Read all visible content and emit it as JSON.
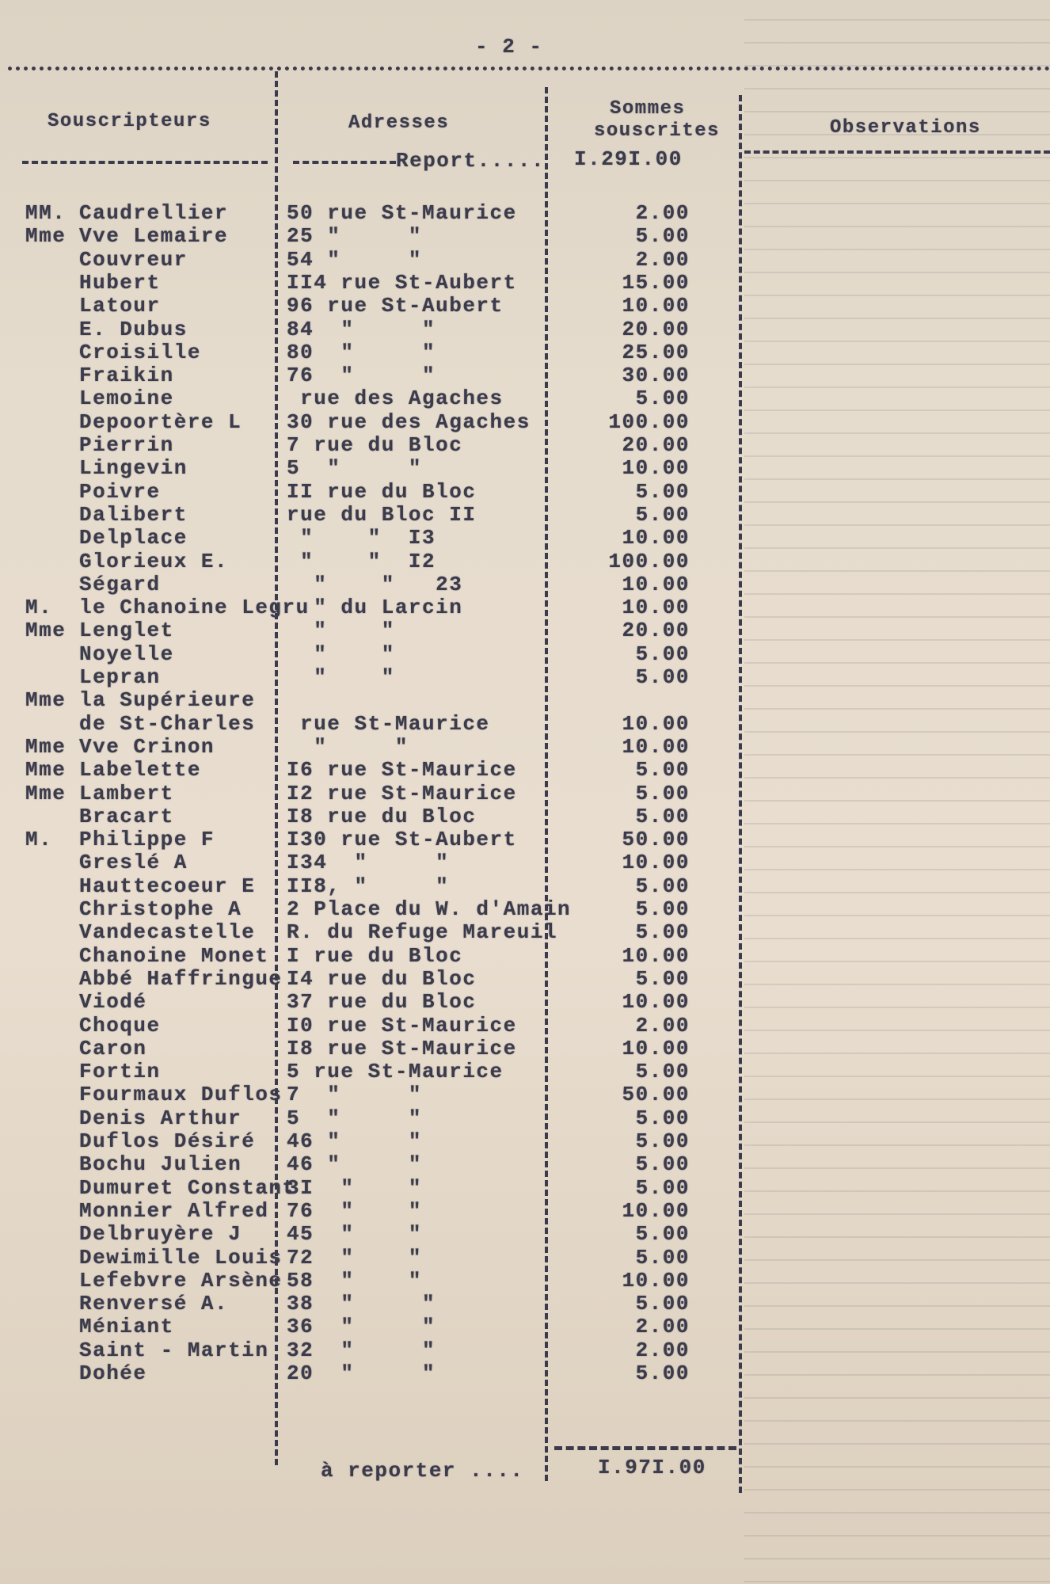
{
  "page_number": "- 2 -",
  "headers": {
    "subscribers": "Souscripteurs",
    "addresses": "Adresses",
    "amounts_line1": "Sommes",
    "amounts_line2": "souscrites",
    "observations": "Observations"
  },
  "carry_in": {
    "label": "Report.....",
    "amount": "I.29I.00"
  },
  "rows": [
    {
      "prefix": "MM.",
      "name": "Caudrellier",
      "address": "50 rue St-Maurice",
      "amount": "2.00"
    },
    {
      "prefix": "Mme",
      "name": "Vve Lemaire",
      "address": "25 \"     \"",
      "amount": "5.00"
    },
    {
      "prefix": "",
      "name": "Couvreur",
      "address": "54 \"     \"",
      "amount": "2.00"
    },
    {
      "prefix": "",
      "name": "Hubert",
      "address": "II4 rue St-Aubert",
      "amount": "15.00"
    },
    {
      "prefix": "",
      "name": "Latour",
      "address": "96 rue St-Aubert",
      "amount": "10.00"
    },
    {
      "prefix": "",
      "name": "E. Dubus",
      "address": "84  \"     \"",
      "amount": "20.00"
    },
    {
      "prefix": "",
      "name": "Croisille",
      "address": "80  \"     \"",
      "amount": "25.00"
    },
    {
      "prefix": "",
      "name": "Fraikin",
      "address": "76  \"     \"",
      "amount": "30.00"
    },
    {
      "prefix": "",
      "name": "Lemoine",
      "address": " rue des Agaches",
      "amount": "5.00"
    },
    {
      "prefix": "",
      "name": "Depoortère L",
      "address": "30 rue des Agaches",
      "amount": "100.00"
    },
    {
      "prefix": "",
      "name": "Pierrin",
      "address": "7 rue du Bloc",
      "amount": "20.00"
    },
    {
      "prefix": "",
      "name": "Lingevin",
      "address": "5  \"     \"",
      "amount": "10.00"
    },
    {
      "prefix": "",
      "name": "Poivre",
      "address": "II rue du Bloc",
      "amount": "5.00"
    },
    {
      "prefix": "",
      "name": "Dalibert",
      "address": "rue du Bloc II",
      "amount": "5.00"
    },
    {
      "prefix": "",
      "name": "Delplace",
      "address": " \"    \"  I3",
      "amount": "10.00"
    },
    {
      "prefix": "",
      "name": "Glorieux E.",
      "address": " \"    \"  I2",
      "amount": "100.00"
    },
    {
      "prefix": "",
      "name": "Ségard",
      "address": "  \"    \"   23",
      "amount": "10.00"
    },
    {
      "prefix": "M.",
      "name": "le Chanoine Legru",
      "address": "  \" du Larcin",
      "amount": "10.00"
    },
    {
      "prefix": "Mme",
      "name": "Lenglet",
      "address": "  \"    \"",
      "amount": "20.00"
    },
    {
      "prefix": "",
      "name": "Noyelle",
      "address": "  \"    \"",
      "amount": "5.00"
    },
    {
      "prefix": "",
      "name": "Lepran",
      "address": "  \"    \"",
      "amount": "5.00"
    },
    {
      "prefix": "Mme",
      "name": "la Supérieure",
      "address": "",
      "amount": ""
    },
    {
      "prefix": "",
      "name": "de St-Charles",
      "address": " rue St-Maurice",
      "amount": "10.00"
    },
    {
      "prefix": "Mme",
      "name": "Vve Crinon",
      "address": "  \"     \"",
      "amount": "10.00"
    },
    {
      "prefix": "Mme",
      "name": "Labelette",
      "address": "I6 rue St-Maurice",
      "amount": "5.00"
    },
    {
      "prefix": "Mme",
      "name": "Lambert",
      "address": "I2 rue St-Maurice",
      "amount": "5.00"
    },
    {
      "prefix": "",
      "name": "Bracart",
      "address": "I8 rue du Bloc",
      "amount": "5.00"
    },
    {
      "prefix": "M.",
      "name": "Philippe F",
      "address": "I30 rue St-Aubert",
      "amount": "50.00"
    },
    {
      "prefix": "",
      "name": "Greslé A",
      "address": "I34  \"     \"",
      "amount": "10.00"
    },
    {
      "prefix": "",
      "name": "Hauttecoeur E",
      "address": "II8, \"     \"",
      "amount": "5.00"
    },
    {
      "prefix": "",
      "name": "Christophe A",
      "address": "2 Place du W. d'Amain",
      "amount": "5.00"
    },
    {
      "prefix": "",
      "name": "Vandecastelle",
      "address": "R. du Refuge Mareuil",
      "amount": "5.00"
    },
    {
      "prefix": "",
      "name": "Chanoine Monet",
      "address": "I rue du Bloc",
      "amount": "10.00"
    },
    {
      "prefix": "",
      "name": "Abbé Haffringue",
      "address": "I4 rue du Bloc",
      "amount": "5.00"
    },
    {
      "prefix": "",
      "name": "Viodé",
      "address": "37 rue du Bloc",
      "amount": "10.00"
    },
    {
      "prefix": "",
      "name": "Choque",
      "address": "I0 rue St-Maurice",
      "amount": "2.00"
    },
    {
      "prefix": "",
      "name": "Caron",
      "address": "I8 rue St-Maurice",
      "amount": "10.00"
    },
    {
      "prefix": "",
      "name": "Fortin",
      "address": "5 rue St-Maurice",
      "amount": "5.00"
    },
    {
      "prefix": "",
      "name": "Fourmaux Duflos",
      "address": "7  \"     \"",
      "amount": "50.00"
    },
    {
      "prefix": "",
      "name": "Denis Arthur",
      "address": "5  \"     \"",
      "amount": "5.00"
    },
    {
      "prefix": "",
      "name": "Duflos Désiré",
      "address": "46 \"     \"",
      "amount": "5.00"
    },
    {
      "prefix": "",
      "name": "Bochu Julien",
      "address": "46 \"     \"",
      "amount": "5.00"
    },
    {
      "prefix": "",
      "name": "Dumuret Constant",
      "address": "3I  \"    \"",
      "amount": "5.00"
    },
    {
      "prefix": "",
      "name": "Monnier Alfred",
      "address": "76  \"    \"",
      "amount": "10.00"
    },
    {
      "prefix": "",
      "name": "Delbruyère J",
      "address": "45  \"    \"",
      "amount": "5.00"
    },
    {
      "prefix": "",
      "name": "Dewimille Louis",
      "address": "72  \"    \"",
      "amount": "5.00"
    },
    {
      "prefix": "",
      "name": "Lefebvre Arsène",
      "address": "58  \"    \"",
      "amount": "10.00"
    },
    {
      "prefix": "",
      "name": "Renversé A.",
      "address": "38  \"     \"",
      "amount": "5.00"
    },
    {
      "prefix": "",
      "name": "Méniant",
      "address": "36  \"     \"",
      "amount": "2.00"
    },
    {
      "prefix": "",
      "name": "Saint - Martin",
      "address": "32  \"     \"",
      "amount": "2.00"
    },
    {
      "prefix": "",
      "name": "Dohée",
      "address": "20  \"     \"",
      "amount": "5.00"
    }
  ],
  "carry_out": {
    "label": "à reporter ....",
    "amount": "I.97I.00"
  }
}
